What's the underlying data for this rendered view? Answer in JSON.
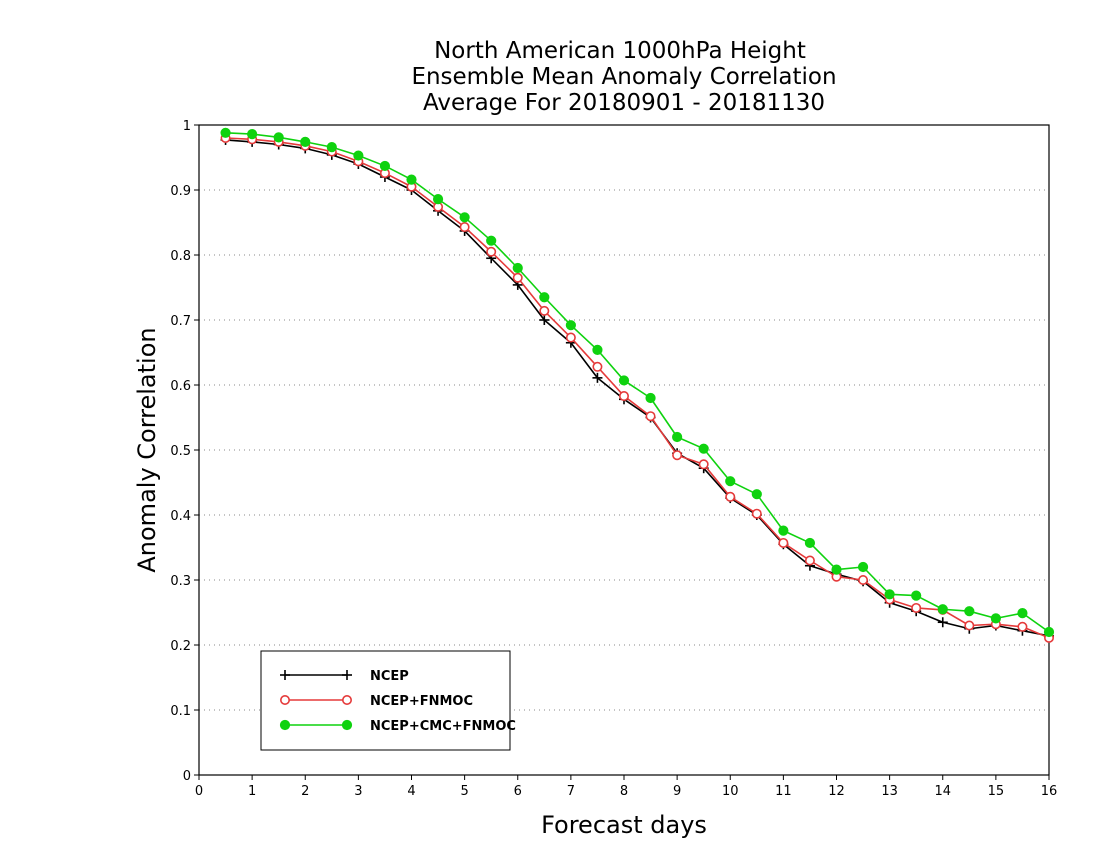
{
  "chart_data": {
    "type": "line",
    "title_lines": [
      "North American 1000hPa Height",
      "Ensemble Mean Anomaly Correlation",
      "Average For 20180901 - 20181130"
    ],
    "xlabel": "Forecast days",
    "ylabel": "Anomaly Correlation",
    "xlim": [
      0,
      16
    ],
    "ylim": [
      0,
      1
    ],
    "xticks": [
      0,
      1,
      2,
      3,
      4,
      5,
      6,
      7,
      8,
      9,
      10,
      11,
      12,
      13,
      14,
      15,
      16
    ],
    "yticks": [
      0,
      0.1,
      0.2,
      0.3,
      0.4,
      0.5,
      0.6,
      0.7,
      0.8,
      0.9,
      1
    ],
    "ytick_labels": [
      "0",
      "0.1",
      "0.2",
      "0.3",
      "0.4",
      "0.5",
      "0.6",
      "0.7",
      "0.8",
      "0.9",
      "1"
    ],
    "grid": "horizontal-dotted",
    "legend_position": "bottom-left",
    "x": [
      0.5,
      1,
      1.5,
      2,
      2.5,
      3,
      3.5,
      4,
      4.5,
      5,
      5.5,
      6,
      6.5,
      7,
      7.5,
      8,
      8.5,
      9,
      9.5,
      10,
      10.5,
      11,
      11.5,
      12,
      12.5,
      13,
      13.5,
      14,
      14.5,
      15,
      15.5,
      16
    ],
    "series": [
      {
        "name": "NCEP",
        "color": "#000000",
        "marker": "plus",
        "values": [
          0.977,
          0.974,
          0.97,
          0.964,
          0.954,
          0.94,
          0.92,
          0.9,
          0.868,
          0.837,
          0.795,
          0.754,
          0.7,
          0.665,
          0.611,
          0.578,
          0.55,
          0.495,
          0.472,
          0.426,
          0.4,
          0.355,
          0.322,
          0.309,
          0.298,
          0.265,
          0.252,
          0.235,
          0.225,
          0.23,
          0.222,
          0.214
        ]
      },
      {
        "name": "NCEP+FNMOC",
        "color": "#e53a3a",
        "marker": "open-circle",
        "values": [
          0.98,
          0.978,
          0.974,
          0.968,
          0.959,
          0.944,
          0.926,
          0.905,
          0.874,
          0.843,
          0.805,
          0.765,
          0.714,
          0.673,
          0.628,
          0.583,
          0.552,
          0.492,
          0.478,
          0.428,
          0.402,
          0.357,
          0.33,
          0.305,
          0.3,
          0.27,
          0.257,
          0.254,
          0.23,
          0.232,
          0.228,
          0.211
        ]
      },
      {
        "name": "NCEP+CMC+FNMOC",
        "color": "#0fd20f",
        "marker": "filled-circle",
        "values": [
          0.988,
          0.986,
          0.981,
          0.974,
          0.966,
          0.953,
          0.937,
          0.916,
          0.886,
          0.858,
          0.822,
          0.78,
          0.735,
          0.692,
          0.654,
          0.607,
          0.58,
          0.52,
          0.502,
          0.452,
          0.432,
          0.376,
          0.357,
          0.316,
          0.32,
          0.278,
          0.276,
          0.255,
          0.252,
          0.241,
          0.249,
          0.22
        ]
      }
    ]
  }
}
